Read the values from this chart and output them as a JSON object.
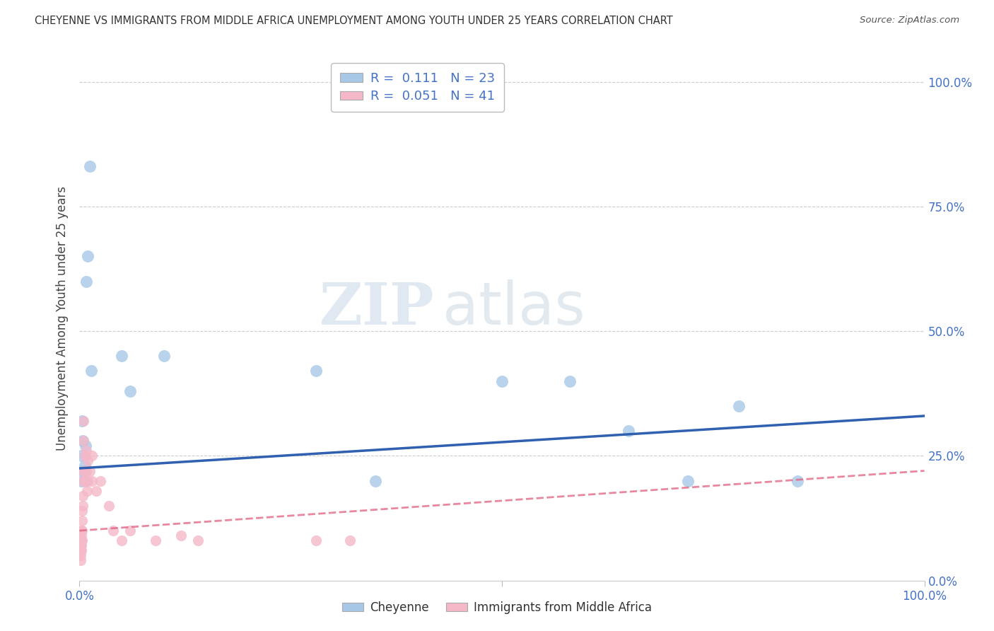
{
  "title": "CHEYENNE VS IMMIGRANTS FROM MIDDLE AFRICA UNEMPLOYMENT AMONG YOUTH UNDER 25 YEARS CORRELATION CHART",
  "source": "Source: ZipAtlas.com",
  "ylabel": "Unemployment Among Youth under 25 years",
  "ytick_labels": [
    "0.0%",
    "25.0%",
    "50.0%",
    "75.0%",
    "100.0%"
  ],
  "ytick_values": [
    0.0,
    0.25,
    0.5,
    0.75,
    1.0
  ],
  "legend1_label": "Cheyenne",
  "legend2_label": "Immigrants from Middle Africa",
  "R1": "0.111",
  "N1": "23",
  "R2": "0.051",
  "N2": "41",
  "blue_color": "#a8c8e8",
  "pink_color": "#f4b8c8",
  "blue_line_color": "#3060b0",
  "pink_line_color": "#e06080",
  "blue_scatter_x": [
    0.002,
    0.002,
    0.003,
    0.004,
    0.005,
    0.006,
    0.007,
    0.007,
    0.008,
    0.01,
    0.012,
    0.014,
    0.05,
    0.06,
    0.1,
    0.28,
    0.35,
    0.5,
    0.58,
    0.65,
    0.72,
    0.78,
    0.85
  ],
  "blue_scatter_y": [
    0.2,
    0.25,
    0.32,
    0.28,
    0.22,
    0.23,
    0.27,
    0.2,
    0.6,
    0.65,
    0.83,
    0.42,
    0.45,
    0.38,
    0.45,
    0.42,
    0.2,
    0.4,
    0.4,
    0.3,
    0.2,
    0.35,
    0.2
  ],
  "pink_scatter_x": [
    0.001,
    0.001,
    0.001,
    0.001,
    0.002,
    0.002,
    0.002,
    0.002,
    0.002,
    0.003,
    0.003,
    0.003,
    0.003,
    0.004,
    0.004,
    0.004,
    0.005,
    0.005,
    0.005,
    0.006,
    0.006,
    0.007,
    0.008,
    0.008,
    0.009,
    0.01,
    0.01,
    0.012,
    0.015,
    0.015,
    0.02,
    0.025,
    0.035,
    0.04,
    0.05,
    0.06,
    0.09,
    0.12,
    0.14,
    0.28,
    0.32
  ],
  "pink_scatter_y": [
    0.04,
    0.05,
    0.06,
    0.07,
    0.06,
    0.07,
    0.08,
    0.09,
    0.1,
    0.08,
    0.1,
    0.12,
    0.14,
    0.15,
    0.17,
    0.2,
    0.22,
    0.28,
    0.32,
    0.22,
    0.25,
    0.2,
    0.22,
    0.26,
    0.18,
    0.2,
    0.24,
    0.22,
    0.2,
    0.25,
    0.18,
    0.2,
    0.15,
    0.1,
    0.08,
    0.1,
    0.08,
    0.09,
    0.08,
    0.08,
    0.08
  ],
  "xlim": [
    0.0,
    1.0
  ],
  "ylim": [
    0.0,
    1.05
  ],
  "blue_trend_x": [
    0.0,
    1.0
  ],
  "blue_trend_y_start": 0.225,
  "blue_trend_y_end": 0.33,
  "pink_trend_y_start": 0.1,
  "pink_trend_y_end": 0.22
}
